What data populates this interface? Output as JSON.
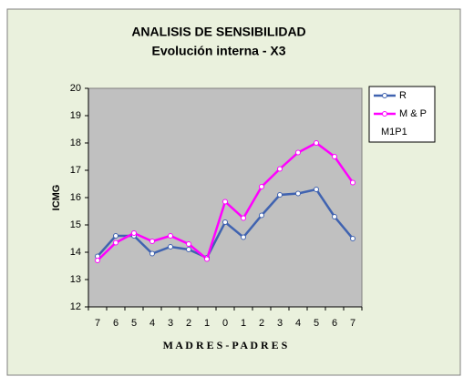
{
  "chart_data": {
    "type": "line",
    "title": "ANALISIS DE SENSIBILIDAD",
    "subtitle": "Evolución interna - X3",
    "x_label": "M A D R E S - P A D R E S",
    "y_label": "ICMG",
    "categories": [
      "7",
      "6",
      "5",
      "4",
      "3",
      "2",
      "1",
      "0",
      "1",
      "2",
      "3",
      "4",
      "5",
      "6",
      "7"
    ],
    "series": [
      {
        "name": "R",
        "color": "#4063b0",
        "values": [
          13.85,
          14.6,
          14.6,
          13.95,
          14.2,
          14.1,
          13.8,
          15.1,
          14.55,
          15.35,
          16.1,
          16.15,
          16.3,
          15.3,
          14.5
        ]
      },
      {
        "name": "M & P",
        "color": "#ff00ff",
        "values": [
          13.7,
          14.35,
          14.7,
          14.4,
          14.6,
          14.3,
          13.75,
          15.85,
          15.25,
          16.4,
          17.05,
          17.65,
          18.0,
          17.5,
          16.55
        ]
      },
      {
        "name": "M1P1",
        "values": [
          null,
          null,
          null,
          null,
          null,
          null,
          null,
          null,
          null,
          null,
          null,
          null,
          null,
          null,
          null
        ]
      }
    ],
    "ylim": [
      12,
      20
    ],
    "yticks": [
      12,
      13,
      14,
      15,
      16,
      17,
      18,
      19,
      20
    ],
    "grid": false,
    "legend": "right"
  }
}
